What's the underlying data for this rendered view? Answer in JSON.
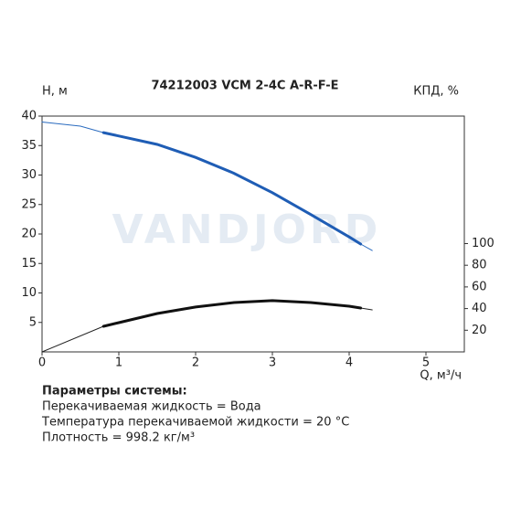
{
  "chart_data": {
    "type": "line",
    "title": "74212003 VCM 2-4C A-R-F-E",
    "watermark": "VANDJORD",
    "y_label": "H, м",
    "y2_label": "КПД, %",
    "x_label": "Q, м³/ч",
    "xlim": [
      0,
      5.5
    ],
    "xticks": [
      0,
      1,
      2,
      3,
      4,
      5
    ],
    "ylim": [
      0,
      40
    ],
    "yticks": [
      5,
      10,
      15,
      20,
      25,
      30,
      35,
      40
    ],
    "y2lim": [
      0,
      217.7
    ],
    "y2ticks": [
      20,
      40,
      60,
      80,
      100
    ],
    "series": [
      {
        "color": "#2a6bbf",
        "width": 1,
        "x": [
          0,
          0.5,
          0.8,
          1.5,
          2,
          2.5,
          3,
          3.5,
          4,
          4.15,
          4.3
        ],
        "values": [
          39,
          38.3,
          37.2,
          35.2,
          33,
          30.3,
          27,
          23.3,
          19.5,
          18.3,
          17.2
        ]
      },
      {
        "color": "#1f5db5",
        "width": 3,
        "x": [
          0.8,
          1.5,
          2,
          2.5,
          3,
          3.5,
          4,
          4.15
        ],
        "values": [
          37.2,
          35.2,
          33,
          30.3,
          27,
          23.3,
          19.5,
          18.3
        ]
      },
      {
        "color": "#222222",
        "width": 1,
        "axis": "y2",
        "x": [
          0,
          0.8,
          1,
          1.5,
          2,
          2.5,
          3,
          3.5,
          4,
          4.15,
          4.3
        ],
        "values": [
          0,
          23.6,
          27,
          35.4,
          41.4,
          45.6,
          47.3,
          45.6,
          42.2,
          40.5,
          38.8
        ]
      },
      {
        "color": "#111111",
        "width": 3,
        "axis": "y2",
        "x": [
          0.8,
          1,
          1.5,
          2,
          2.5,
          3,
          3.5,
          4,
          4.15
        ],
        "values": [
          23.6,
          27,
          35.4,
          41.4,
          45.6,
          47.3,
          45.6,
          42.2,
          40.5
        ]
      }
    ]
  },
  "notes": {
    "heading": "Параметры системы:",
    "lines": [
      "Перекачиваемая жидкость = Вода",
      "Температура перекачиваемой жидкости = 20 °C",
      "Плотность = 998.2 кг/м³"
    ]
  }
}
